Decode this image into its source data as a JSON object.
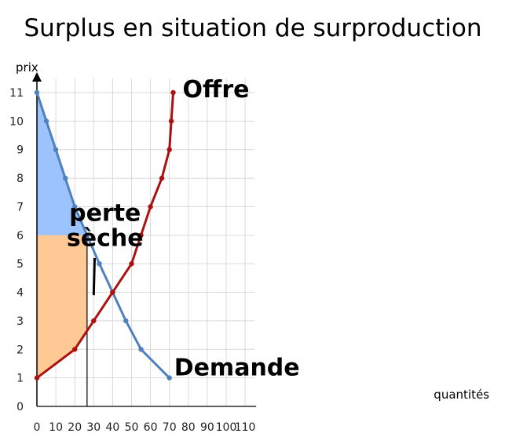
{
  "chart_data": {
    "type": "line",
    "title": "Surplus en situation de surproduction",
    "xlabel": "quantités",
    "ylabel": "prix",
    "xlim": [
      0,
      115
    ],
    "ylim": [
      0,
      11.5
    ],
    "x_ticks": [
      0,
      10,
      20,
      30,
      40,
      50,
      60,
      70,
      80,
      90,
      100,
      110
    ],
    "y_ticks": [
      0,
      1,
      2,
      3,
      4,
      5,
      6,
      7,
      8,
      9,
      10,
      11
    ],
    "x_tick_labels": [
      "0",
      "10",
      "20",
      "30",
      "40",
      "50",
      "60",
      "70",
      "80",
      "90",
      "100",
      "110"
    ],
    "y_tick_labels": [
      "0",
      "1",
      "2",
      "3",
      "4",
      "5",
      "6",
      "7",
      "8",
      "9",
      "10",
      "11"
    ],
    "grid": true,
    "series": [
      {
        "name": "Demande",
        "color": "#4f81bd",
        "points": [
          [
            0,
            11
          ],
          [
            5,
            10
          ],
          [
            10,
            9
          ],
          [
            15,
            8
          ],
          [
            20,
            7
          ],
          [
            26.5,
            6
          ],
          [
            33,
            5
          ],
          [
            40,
            4
          ],
          [
            47,
            3
          ],
          [
            55,
            2
          ],
          [
            70,
            1
          ]
        ]
      },
      {
        "name": "Offre",
        "color": "#aa1111",
        "points": [
          [
            0,
            1
          ],
          [
            20,
            2
          ],
          [
            30,
            3
          ],
          [
            40,
            4
          ],
          [
            50,
            5
          ],
          [
            55,
            6
          ],
          [
            60,
            7
          ],
          [
            66,
            8
          ],
          [
            70,
            9
          ],
          [
            71,
            10
          ],
          [
            72,
            11
          ]
        ]
      }
    ],
    "areas": [
      {
        "color": "#9dc3ff",
        "polygon": [
          [
            0,
            11
          ],
          [
            5,
            10
          ],
          [
            10,
            9
          ],
          [
            15,
            8
          ],
          [
            20,
            7
          ],
          [
            26.5,
            6
          ],
          [
            0,
            6
          ]
        ]
      },
      {
        "color": "#ffc996",
        "polygon": [
          [
            0,
            6
          ],
          [
            26.5,
            6
          ],
          [
            26.5,
            2.65
          ],
          [
            20,
            2
          ],
          [
            0,
            1
          ]
        ]
      }
    ],
    "reference_line": {
      "x": 26.5,
      "y_from": 0,
      "y_to": 6,
      "color": "#000000"
    },
    "annotations": [
      {
        "text": "perte\nsèche",
        "at": [
          36,
          6.5
        ],
        "pointer_from": [
          30.5,
          5.2
        ],
        "pointer_to": [
          30.0,
          3.9
        ]
      }
    ]
  }
}
